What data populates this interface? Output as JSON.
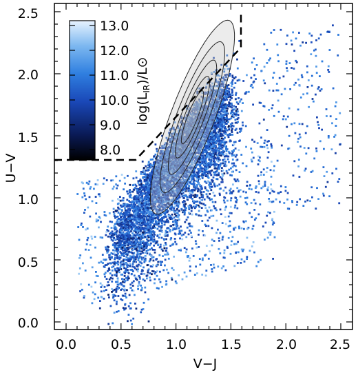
{
  "chart_data": {
    "type": "scatter",
    "xlabel": "V−J",
    "ylabel": "U−V",
    "xlim": [
      -0.1,
      2.6
    ],
    "ylim": [
      -0.05,
      2.55
    ],
    "x_ticks": [
      "0.0",
      "0.5",
      "1.0",
      "1.5",
      "2.0",
      "2.5"
    ],
    "y_ticks": [
      "0.0",
      "0.5",
      "1.0",
      "1.5",
      "2.0",
      "2.5"
    ],
    "colorbar": {
      "label": "log(L_IR)/L⊙",
      "label_parts": {
        "base": "log(L",
        "sub": "IR",
        "tail": ")/L⊙"
      },
      "ticks": [
        "13.0",
        "12.0",
        "11.0",
        "10.0",
        "9.0",
        "8.0"
      ],
      "range": [
        7.7,
        13.3
      ],
      "colors": [
        "#000000",
        "#0a1a55",
        "#1a48b8",
        "#2f7fe0",
        "#7db8f0",
        "#e8f3ff"
      ]
    },
    "boundary_lines": {
      "style": "dashed",
      "horizontal": {
        "y": 1.3,
        "x_from": -0.1,
        "x_to": 0.69
      },
      "diagonal": {
        "from": [
          0.69,
          1.3
        ],
        "to": [
          1.6,
          2.2
        ]
      },
      "vertical": {
        "x": 1.6,
        "y_from": 2.2,
        "y_to": 2.55
      }
    },
    "density_contours": {
      "center": [
        1.15,
        1.65
      ],
      "direction_deg": 55,
      "levels": [
        {
          "a": 0.95,
          "b": 0.22
        },
        {
          "a": 0.74,
          "b": 0.16
        },
        {
          "a": 0.56,
          "b": 0.115
        },
        {
          "a": 0.4,
          "b": 0.08
        },
        {
          "a": 0.26,
          "b": 0.05
        }
      ]
    },
    "points": {
      "count": 7000,
      "ridge": {
        "x_range": [
          0.45,
          1.45
        ],
        "y_at_start": 0.8,
        "slope": 1.25
      },
      "note": "dense sequence of galaxies colored by infrared luminosity"
    }
  }
}
